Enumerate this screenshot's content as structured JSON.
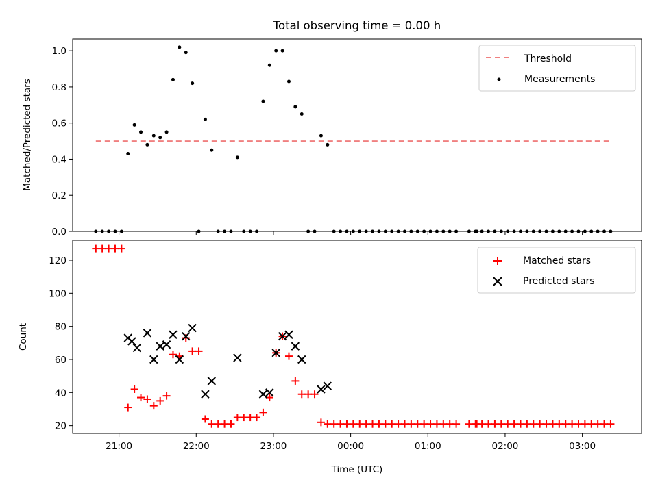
{
  "chart_data": [
    {
      "type": "scatter",
      "title": "Total observing time = 0.00 h",
      "xlabel": "",
      "ylabel": "Matched/Predicted stars",
      "ylim": [
        0,
        1.065
      ],
      "yticks": [
        "0.0",
        "0.2",
        "0.4",
        "0.6",
        "0.8",
        "1.0"
      ],
      "legend_position": "upper right",
      "threshold": {
        "name": "Threshold",
        "value": 0.5,
        "x_range": [
          "20:42",
          "03:23"
        ],
        "color": "#f08080"
      },
      "series": [
        {
          "name": "Measurements",
          "color": "#000000",
          "points": [
            [
              "20:42",
              0
            ],
            [
              "20:47",
              0
            ],
            [
              "20:52",
              0
            ],
            [
              "20:57",
              0
            ],
            [
              "21:02",
              0
            ],
            [
              "21:07",
              0.43
            ],
            [
              "21:12",
              0.59
            ],
            [
              "21:17",
              0.55
            ],
            [
              "21:22",
              0.48
            ],
            [
              "21:27",
              0.53
            ],
            [
              "21:32",
              0.52
            ],
            [
              "21:37",
              0.55
            ],
            [
              "21:42",
              0.84
            ],
            [
              "21:47",
              1.02
            ],
            [
              "21:52",
              0.99
            ],
            [
              "21:57",
              0.82
            ],
            [
              "22:02",
              0
            ],
            [
              "22:07",
              0.62
            ],
            [
              "22:12",
              0.45
            ],
            [
              "22:17",
              0
            ],
            [
              "22:22",
              0
            ],
            [
              "22:27",
              0
            ],
            [
              "22:32",
              0.41
            ],
            [
              "22:37",
              0
            ],
            [
              "22:42",
              0
            ],
            [
              "22:47",
              0
            ],
            [
              "22:52",
              0.72
            ],
            [
              "22:57",
              0.92
            ],
            [
              "23:02",
              1.0
            ],
            [
              "23:07",
              1.0
            ],
            [
              "23:12",
              0.83
            ],
            [
              "23:17",
              0.69
            ],
            [
              "23:22",
              0.65
            ],
            [
              "23:27",
              0
            ],
            [
              "23:32",
              0
            ],
            [
              "23:37",
              0.53
            ],
            [
              "23:42",
              0.48
            ],
            [
              "23:47",
              0
            ],
            [
              "23:52",
              0
            ],
            [
              "23:57",
              0
            ],
            [
              "00:02",
              0
            ],
            [
              "00:07",
              0
            ],
            [
              "00:12",
              0
            ],
            [
              "00:17",
              0
            ],
            [
              "00:22",
              0
            ],
            [
              "00:27",
              0
            ],
            [
              "00:32",
              0
            ],
            [
              "00:37",
              0
            ],
            [
              "00:42",
              0
            ],
            [
              "00:47",
              0
            ],
            [
              "00:52",
              0
            ],
            [
              "00:57",
              0
            ],
            [
              "01:02",
              0
            ],
            [
              "01:07",
              0
            ],
            [
              "01:12",
              0
            ],
            [
              "01:17",
              0
            ],
            [
              "01:22",
              0
            ],
            [
              "01:32",
              0
            ],
            [
              "01:37",
              0
            ],
            [
              "01:38",
              0
            ],
            [
              "01:42",
              0
            ],
            [
              "01:47",
              0
            ],
            [
              "01:52",
              0
            ],
            [
              "01:57",
              0
            ],
            [
              "02:02",
              0
            ],
            [
              "02:07",
              0
            ],
            [
              "02:12",
              0
            ],
            [
              "02:17",
              0
            ],
            [
              "02:22",
              0
            ],
            [
              "02:27",
              0
            ],
            [
              "02:32",
              0
            ],
            [
              "02:37",
              0
            ],
            [
              "02:42",
              0
            ],
            [
              "02:47",
              0
            ],
            [
              "02:52",
              0
            ],
            [
              "02:57",
              0
            ],
            [
              "03:02",
              0
            ],
            [
              "03:07",
              0
            ],
            [
              "03:12",
              0
            ],
            [
              "03:17",
              0
            ],
            [
              "03:22",
              0
            ]
          ]
        }
      ]
    },
    {
      "type": "scatter",
      "title": "",
      "xlabel": "Time (UTC)",
      "ylabel": "Count",
      "ylim": [
        15.3,
        132
      ],
      "yticks": [
        "20",
        "40",
        "60",
        "80",
        "100",
        "120"
      ],
      "xlim": [
        "20:24",
        "03:46"
      ],
      "xticks": [
        "21:00",
        "22:00",
        "23:00",
        "00:00",
        "01:00",
        "02:00",
        "03:00"
      ],
      "legend_position": "upper right",
      "series": [
        {
          "name": "Matched stars",
          "color": "#ff0000",
          "marker": "+",
          "points": [
            [
              "20:42",
              127
            ],
            [
              "20:47",
              127
            ],
            [
              "20:52",
              127
            ],
            [
              "20:57",
              127
            ],
            [
              "21:02",
              127
            ],
            [
              "21:07",
              31
            ],
            [
              "21:12",
              42
            ],
            [
              "21:17",
              37
            ],
            [
              "21:22",
              36
            ],
            [
              "21:27",
              32
            ],
            [
              "21:32",
              35
            ],
            [
              "21:37",
              38
            ],
            [
              "21:42",
              63
            ],
            [
              "21:47",
              62
            ],
            [
              "21:52",
              73
            ],
            [
              "21:57",
              65
            ],
            [
              "22:02",
              65
            ],
            [
              "22:07",
              24
            ],
            [
              "22:12",
              21
            ],
            [
              "22:17",
              21
            ],
            [
              "22:22",
              21
            ],
            [
              "22:27",
              21
            ],
            [
              "22:32",
              25
            ],
            [
              "22:37",
              25
            ],
            [
              "22:42",
              25
            ],
            [
              "22:47",
              25
            ],
            [
              "22:52",
              28
            ],
            [
              "22:57",
              37
            ],
            [
              "23:02",
              64
            ],
            [
              "23:07",
              74
            ],
            [
              "23:12",
              62
            ],
            [
              "23:17",
              47
            ],
            [
              "23:22",
              39
            ],
            [
              "23:27",
              39
            ],
            [
              "23:32",
              39
            ],
            [
              "23:37",
              22
            ],
            [
              "23:42",
              21
            ],
            [
              "23:47",
              21
            ],
            [
              "23:52",
              21
            ],
            [
              "23:57",
              21
            ],
            [
              "00:02",
              21
            ],
            [
              "00:07",
              21
            ],
            [
              "00:12",
              21
            ],
            [
              "00:17",
              21
            ],
            [
              "00:22",
              21
            ],
            [
              "00:27",
              21
            ],
            [
              "00:32",
              21
            ],
            [
              "00:37",
              21
            ],
            [
              "00:42",
              21
            ],
            [
              "00:47",
              21
            ],
            [
              "00:52",
              21
            ],
            [
              "00:57",
              21
            ],
            [
              "01:02",
              21
            ],
            [
              "01:07",
              21
            ],
            [
              "01:12",
              21
            ],
            [
              "01:17",
              21
            ],
            [
              "01:22",
              21
            ],
            [
              "01:32",
              21
            ],
            [
              "01:37",
              21
            ],
            [
              "01:38",
              21
            ],
            [
              "01:42",
              21
            ],
            [
              "01:47",
              21
            ],
            [
              "01:52",
              21
            ],
            [
              "01:57",
              21
            ],
            [
              "02:02",
              21
            ],
            [
              "02:07",
              21
            ],
            [
              "02:12",
              21
            ],
            [
              "02:17",
              21
            ],
            [
              "02:22",
              21
            ],
            [
              "02:27",
              21
            ],
            [
              "02:32",
              21
            ],
            [
              "02:37",
              21
            ],
            [
              "02:42",
              21
            ],
            [
              "02:47",
              21
            ],
            [
              "02:52",
              21
            ],
            [
              "02:57",
              21
            ],
            [
              "03:02",
              21
            ],
            [
              "03:07",
              21
            ],
            [
              "03:12",
              21
            ],
            [
              "03:17",
              21
            ],
            [
              "03:22",
              21
            ]
          ]
        },
        {
          "name": "Predicted stars",
          "color": "#000000",
          "marker": "x",
          "points": [
            [
              "21:07",
              73
            ],
            [
              "21:10",
              71
            ],
            [
              "21:14",
              67
            ],
            [
              "21:22",
              76
            ],
            [
              "21:27",
              60
            ],
            [
              "21:32",
              68
            ],
            [
              "21:37",
              69
            ],
            [
              "21:42",
              75
            ],
            [
              "21:47",
              60
            ],
            [
              "21:52",
              74
            ],
            [
              "21:57",
              79
            ],
            [
              "22:07",
              39
            ],
            [
              "22:12",
              47
            ],
            [
              "22:32",
              61
            ],
            [
              "22:52",
              39
            ],
            [
              "22:57",
              40
            ],
            [
              "23:02",
              64
            ],
            [
              "23:07",
              74
            ],
            [
              "23:12",
              75
            ],
            [
              "23:17",
              68
            ],
            [
              "23:22",
              60
            ],
            [
              "23:37",
              42
            ],
            [
              "23:42",
              44
            ]
          ]
        }
      ]
    }
  ]
}
